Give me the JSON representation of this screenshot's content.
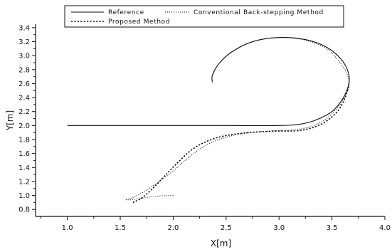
{
  "chart_data": {
    "type": "line",
    "xlabel": "X[m]",
    "ylabel": "Y[m]",
    "xlim": [
      0.7,
      4.0
    ],
    "ylim": [
      0.7,
      3.45
    ],
    "x_ticks": [
      1.0,
      1.5,
      2.0,
      2.5,
      3.0,
      3.5,
      4.0
    ],
    "x_tick_labels": [
      "1.0",
      "1.5",
      "2.0",
      "2.5",
      "3.0",
      "3.5",
      "4.0"
    ],
    "y_ticks": [
      0.8,
      1.0,
      1.2,
      1.4,
      1.6,
      1.8,
      2.0,
      2.2,
      2.4,
      2.6,
      2.8,
      3.0,
      3.2,
      3.4
    ],
    "y_tick_labels": [
      "0.8",
      "1.0",
      "1.2",
      "1.4",
      "1.6",
      "1.8",
      "2.0",
      "2.2",
      "2.4",
      "2.6",
      "2.8",
      "3.0",
      "3.2",
      "3.4"
    ],
    "legend_position": "top",
    "grid": false,
    "series": [
      {
        "name": "Reference",
        "style": "solid",
        "color": "#111111",
        "x": [
          1.0,
          1.5,
          2.0,
          2.5,
          3.0,
          3.2,
          3.35,
          3.5,
          3.6,
          3.66,
          3.65,
          3.58,
          3.45,
          3.25,
          3.0,
          2.75,
          2.55,
          2.43,
          2.37,
          2.37
        ],
        "y": [
          2.0,
          2.0,
          2.0,
          2.0,
          2.0,
          2.02,
          2.08,
          2.2,
          2.38,
          2.6,
          2.78,
          2.96,
          3.12,
          3.23,
          3.26,
          3.2,
          3.05,
          2.88,
          2.72,
          2.62
        ]
      },
      {
        "name": "Conventional Back-stepping Method",
        "style": "dotted",
        "color": "#111111",
        "x": [
          2.0,
          1.85,
          1.7,
          1.62,
          1.55,
          1.62,
          1.72,
          1.85,
          2.0,
          2.15,
          2.35,
          2.6,
          2.9,
          3.2,
          3.4,
          3.55,
          3.65,
          3.66,
          3.62,
          3.55,
          3.45,
          3.25,
          3.0,
          2.75,
          2.55,
          2.43,
          2.37
        ],
        "y": [
          1.0,
          0.99,
          0.96,
          0.94,
          0.94,
          0.97,
          1.05,
          1.18,
          1.35,
          1.55,
          1.75,
          1.87,
          1.92,
          1.95,
          2.05,
          2.25,
          2.5,
          2.65,
          2.8,
          2.95,
          3.1,
          3.22,
          3.26,
          3.2,
          3.05,
          2.88,
          2.72
        ]
      },
      {
        "name": "Proposed Method",
        "style": "dotted",
        "color": "#111111",
        "x": [
          1.62,
          1.65,
          1.7,
          1.75,
          1.82,
          1.92,
          2.05,
          2.2,
          2.4,
          2.65,
          2.95,
          3.2,
          3.4,
          3.55,
          3.63,
          3.66
        ],
        "y": [
          0.9,
          0.92,
          0.96,
          1.02,
          1.12,
          1.28,
          1.48,
          1.68,
          1.82,
          1.89,
          1.92,
          1.93,
          2.02,
          2.2,
          2.42,
          2.6
        ]
      }
    ]
  }
}
